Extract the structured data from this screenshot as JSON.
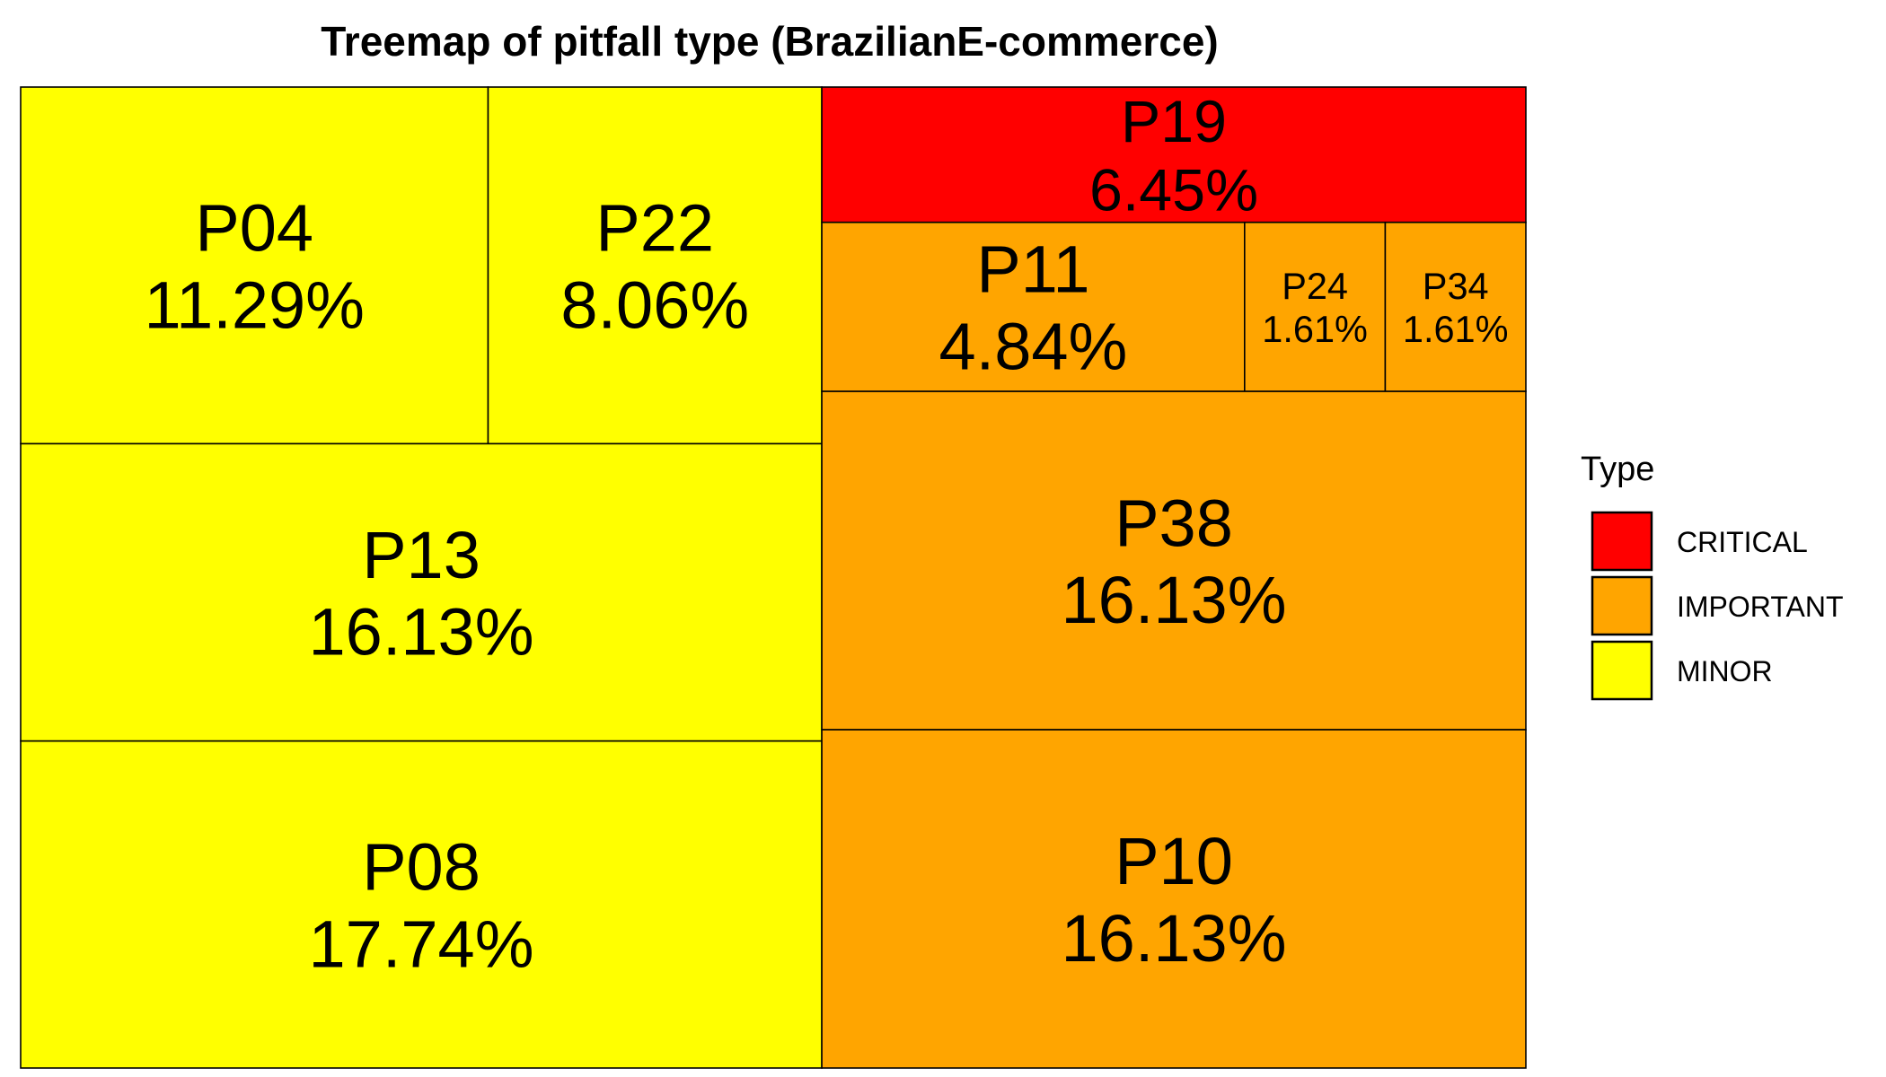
{
  "chart_data": {
    "type": "treemap",
    "title": "Treemap of pitfall type (BrazilianE-commerce)",
    "legend": {
      "title": "Type",
      "position": "right",
      "entries": [
        {
          "label": "CRITICAL",
          "color": "#ff0000"
        },
        {
          "label": "IMPORTANT",
          "color": "#ffa500"
        },
        {
          "label": "MINOR",
          "color": "#ffff00"
        }
      ]
    },
    "items": [
      {
        "label": "P08",
        "value": 17.74,
        "value_label": "17.74%",
        "type": "MINOR"
      },
      {
        "label": "P13",
        "value": 16.13,
        "value_label": "16.13%",
        "type": "MINOR"
      },
      {
        "label": "P04",
        "value": 11.29,
        "value_label": "11.29%",
        "type": "MINOR"
      },
      {
        "label": "P22",
        "value": 8.06,
        "value_label": "8.06%",
        "type": "MINOR"
      },
      {
        "label": "P10",
        "value": 16.13,
        "value_label": "16.13%",
        "type": "IMPORTANT"
      },
      {
        "label": "P38",
        "value": 16.13,
        "value_label": "16.13%",
        "type": "IMPORTANT"
      },
      {
        "label": "P11",
        "value": 4.84,
        "value_label": "4.84%",
        "type": "IMPORTANT"
      },
      {
        "label": "P24",
        "value": 1.61,
        "value_label": "1.61%",
        "type": "IMPORTANT"
      },
      {
        "label": "P34",
        "value": 1.61,
        "value_label": "1.61%",
        "type": "IMPORTANT"
      },
      {
        "label": "P19",
        "value": 6.45,
        "value_label": "6.45%",
        "type": "CRITICAL"
      }
    ]
  }
}
